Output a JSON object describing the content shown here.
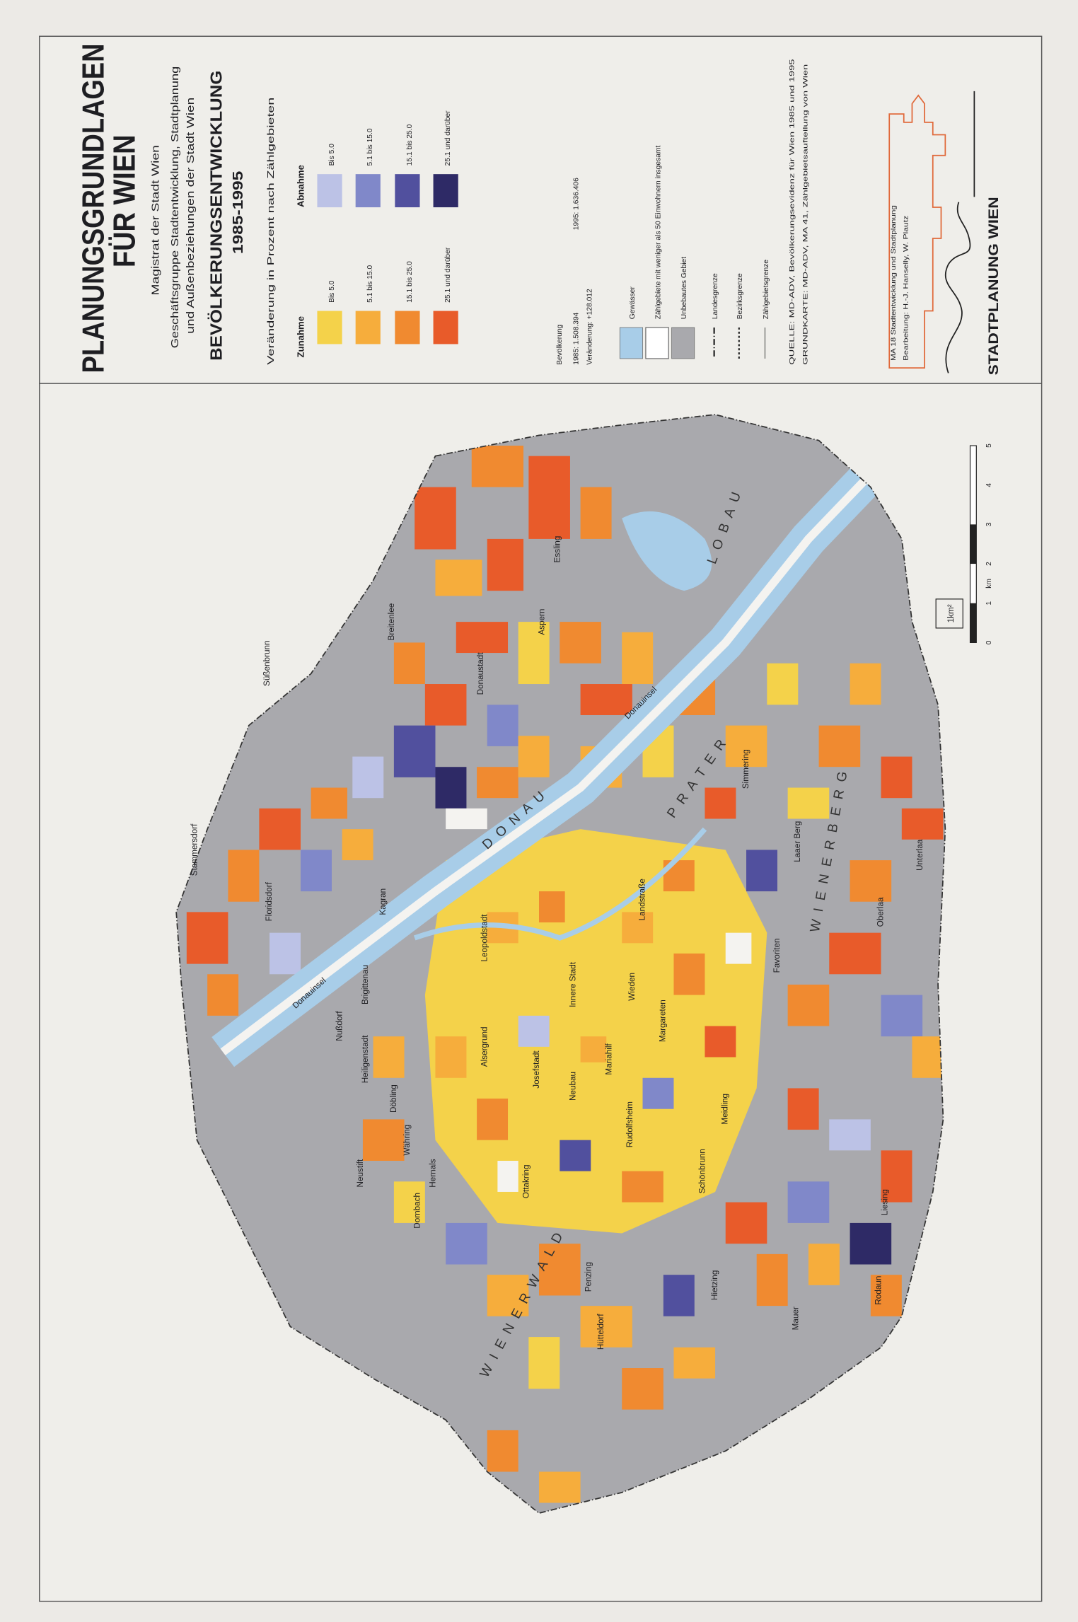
{
  "header": {
    "title": [
      "PLANUNGSGRUNDLAGEN",
      "FÜR WIEN"
    ],
    "authority": "Magistrat der Stadt Wien",
    "department": [
      "Geschäftsgruppe Stadtentwicklung, Stadtplanung",
      "und Außenbeziehungen der Stadt Wien"
    ],
    "subject": "BEVÖLKERUNGSENTWICKLUNG",
    "period": "1985-1995"
  },
  "legend": {
    "heading": "Veränderung in Prozent nach Zählgebieten",
    "increase": {
      "label": "Zunahme",
      "classes": [
        "Bis 5.0",
        "5.1 bis 15.0",
        "15.1 bis 25.0",
        "25.1 und darüber"
      ]
    },
    "decrease": {
      "label": "Abnahme",
      "classes": [
        "Bis 5.0",
        "5.1 bis 15.0",
        "15.1 bis 25.0",
        "25.1 und darüber"
      ]
    }
  },
  "population": {
    "label": "Bevölkerung",
    "y1985": "1985: 1.508.394",
    "y1995": "1995: 1.636.406",
    "change": "Veränderung: +128.012"
  },
  "symbols": [
    "Gewässer",
    "Zählgebiete mit weniger als 50 Einwohnern insgesamt",
    "Unbebautes Gebiet",
    "Landesgrenze",
    "Bezirksgrenze",
    "Zählgebietsgrenze"
  ],
  "sources": [
    "QUELLE: MD-ADV, Bevölkerungsevidenz für Wien 1985 und 1995",
    "GRUNDKARTE: MD-ADV, MA 41, Zählgebietsaufteilung von Wien"
  ],
  "credits": [
    "MA 18 Stadtentwicklung und Stadtplanung",
    "Bearbeitung: H.-J. Hanselly, W. Plautz"
  ],
  "footer": "STADTPLANUNG WIEN",
  "map": {
    "labels": [
      "Stammersdorf",
      "Floridsdorf",
      "Süßenbrunn",
      "Breitenlee",
      "Kagran",
      "Donaustadt",
      "Aspern",
      "Essling",
      "Brigittenau",
      "Nußdorf",
      "Heiligenstadt",
      "Döbling",
      "Neustift",
      "Währing",
      "Hernals",
      "Dornbach",
      "Alsergrund",
      "Leopoldstadt",
      "Innere Stadt",
      "Josefstadt",
      "Neubau",
      "Mariahilf",
      "Wieden",
      "Margareten",
      "Landstraße",
      "Ottakring",
      "Rudolfsheim",
      "Penzing",
      "Hütteldorf",
      "Schönbrunn",
      "Hietzing",
      "Meidling",
      "Mauer",
      "Liesing",
      "Rodaun",
      "Favoriten",
      "Simmering",
      "Laaer Berg",
      "Oberlaa",
      "Unterlaa"
    ],
    "features": [
      "D O N A U",
      "Donauinsel",
      "Donauinsel",
      "P R A T E R",
      "L O B A U",
      "W I E N E R B E R G",
      "W I E N E R W A L D"
    ],
    "scale": {
      "ticks": [
        0,
        1,
        2,
        3,
        4,
        5
      ],
      "unit": "km",
      "area": "1km²"
    }
  }
}
